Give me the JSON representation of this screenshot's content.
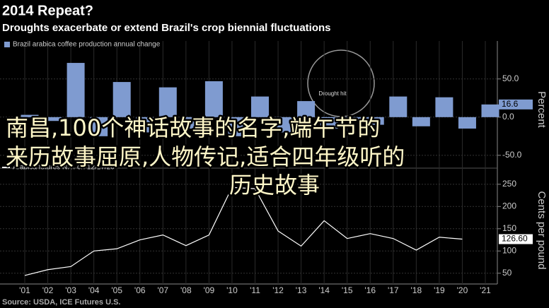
{
  "title": "2014 Repeat?",
  "subtitle": "Droughts exacerbate or extend Brazil's crop biennial fluctuations",
  "source": "Source: USDA, ICE Futures U.S.",
  "overlay_caption": [
    "南昌,100个神话故事的名字,端午节的",
    "来历故事屈原,人物传记,适合四年级听的",
    "历史故事"
  ],
  "chart_data": [
    {
      "type": "bar",
      "y_label": "Percent",
      "annotation": "Drought hit",
      "series": [
        {
          "name": "Brazil arabica coffee production annual change",
          "color": "#7f9bd0",
          "values": [
            3,
            -5,
            71,
            -25,
            46,
            -20,
            39,
            -15,
            47,
            -25,
            27,
            -20,
            21,
            -15,
            -5,
            -10,
            27,
            -12,
            26,
            -15,
            16.6
          ]
        }
      ],
      "ylim": [
        -64,
        84
      ],
      "yticks": [
        {
          "value": -50,
          "label": "-50.0"
        },
        {
          "value": 0,
          "label": "0.0"
        },
        {
          "value": 50,
          "label": "50.0"
        }
      ]
    },
    {
      "type": "line",
      "y_label": "Cents per pound",
      "categories": [
        "'01",
        "'02",
        "'03",
        "'04",
        "'05",
        "'06",
        "'07",
        "'08",
        "'09",
        "'10",
        "'11",
        "'12",
        "'13",
        "'14",
        "'15",
        "'16",
        "'17",
        "'18",
        "'19",
        "'20",
        "'21"
      ],
      "series": [
        {
          "name": "Arabica futures N.Y. on 12/17/20",
          "color": "#ffffff",
          "values": [
            45,
            58,
            65,
            100,
            105,
            125,
            136,
            112,
            136,
            243,
            240,
            145,
            111,
            168,
            128,
            139,
            128,
            102,
            131,
            126.6,
            null
          ],
          "value_labels": [
            null,
            null,
            null,
            null,
            null,
            null,
            null,
            null,
            null,
            null,
            null,
            null,
            null,
            null,
            null,
            null,
            null,
            null,
            null,
            "126.60",
            null
          ]
        }
      ],
      "ylim": [
        29,
        264
      ],
      "yticks": [
        50,
        100,
        150,
        200,
        250
      ]
    }
  ]
}
